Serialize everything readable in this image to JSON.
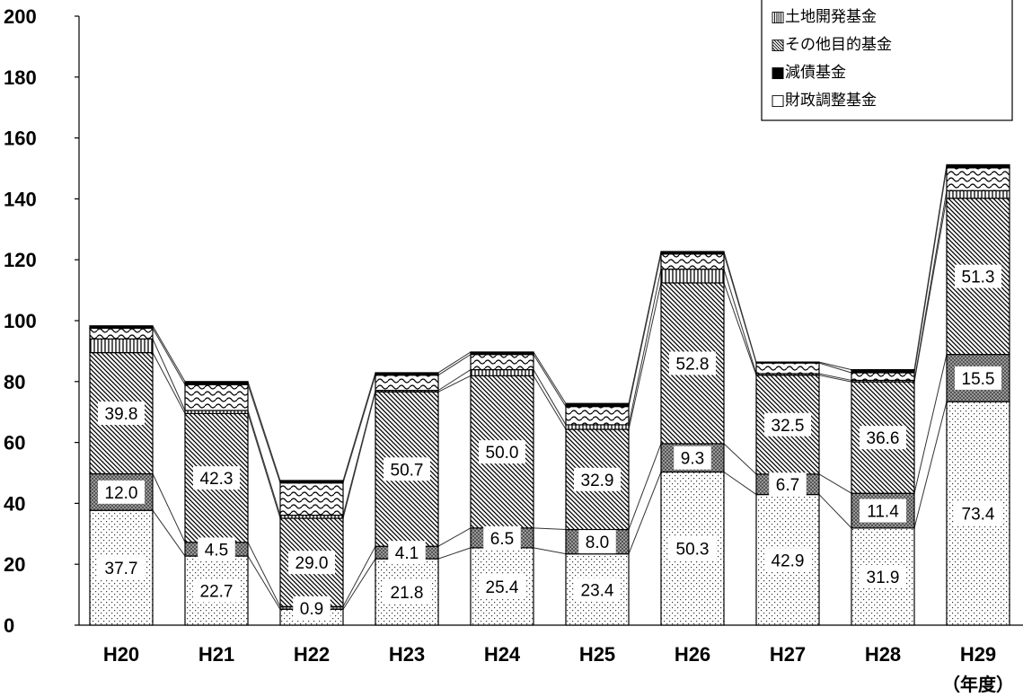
{
  "chart_data": {
    "type": "bar",
    "stacked": true,
    "categories": [
      "H20",
      "H21",
      "H22",
      "H23",
      "H24",
      "H25",
      "H26",
      "H27",
      "H28",
      "H29"
    ],
    "x_unit_label": "（年度）",
    "ylim": [
      0,
      200
    ],
    "yticks": [
      0,
      20,
      40,
      60,
      80,
      100,
      120,
      140,
      160,
      180,
      200
    ],
    "legend_position": "top-right",
    "series": [
      {
        "name": "財政調整基金",
        "legend_label": "□財政調整基金",
        "pattern": "dots",
        "values": [
          37.7,
          22.7,
          5.2,
          21.8,
          25.4,
          23.4,
          50.3,
          42.9,
          31.9,
          73.4
        ],
        "labels": [
          "37.7",
          "22.7",
          "",
          "21.8",
          "25.4",
          "23.4",
          "50.3",
          "42.9",
          "31.9",
          "73.4"
        ]
      },
      {
        "name": "減債基金",
        "legend_label": "■減債基金",
        "pattern": "dark-check",
        "values": [
          12.0,
          4.5,
          0.9,
          4.1,
          6.5,
          8.0,
          9.3,
          6.7,
          11.4,
          15.5
        ],
        "labels": [
          "12.0",
          "4.5",
          "0.9",
          "4.1",
          "6.5",
          "8.0",
          "9.3",
          "6.7",
          "11.4",
          "15.5"
        ]
      },
      {
        "name": "その他目的基金",
        "legend_label": "▧その他目的基金",
        "pattern": "diagonal",
        "values": [
          39.8,
          42.3,
          29.0,
          50.7,
          50.0,
          32.9,
          52.8,
          32.5,
          36.6,
          51.3
        ],
        "labels": [
          "39.8",
          "42.3",
          "29.0",
          "50.7",
          "50.0",
          "32.9",
          "52.8",
          "32.5",
          "36.6",
          "51.3"
        ]
      },
      {
        "name": "土地開発基金",
        "legend_label": "▥土地開発基金",
        "pattern": "vertical",
        "values": [
          4.5,
          1.0,
          1.0,
          0.5,
          2.0,
          1.5,
          4.5,
          0.5,
          0.5,
          2.5
        ],
        "labels": []
      },
      {
        "name": "",
        "legend_label": "",
        "pattern": "wave",
        "values": [
          3.5,
          8.5,
          10.6,
          5.0,
          5.0,
          6.0,
          5.0,
          3.5,
          2.5,
          7.5
        ],
        "labels": []
      },
      {
        "name": "",
        "legend_label": "",
        "pattern": "solid",
        "values": [
          0.8,
          1.0,
          0.8,
          0.8,
          0.8,
          1.0,
          0.8,
          0.3,
          1.0,
          1.0
        ],
        "labels": []
      }
    ]
  }
}
